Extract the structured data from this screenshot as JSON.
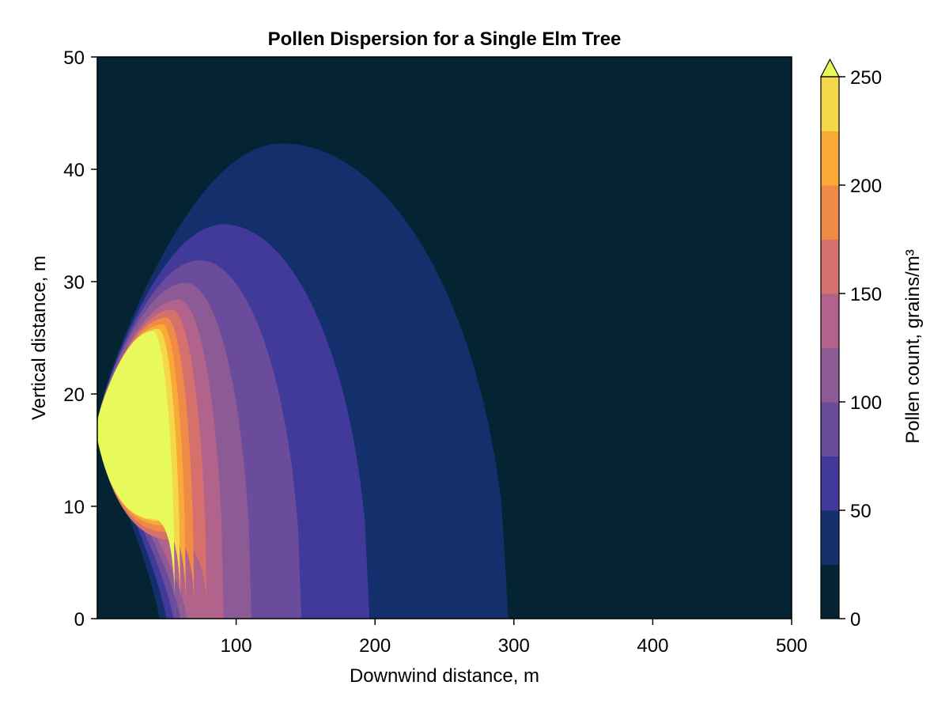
{
  "chart_data": {
    "type": "contourf",
    "title": "Pollen Dispersion for a Single Elm Tree",
    "xlabel": "Downwind distance, m",
    "ylabel": "Vertical distance, m",
    "xlim": [
      0,
      500
    ],
    "ylim": [
      0,
      50
    ],
    "xticks": [
      100,
      200,
      300,
      400,
      500
    ],
    "yticks": [
      0,
      10,
      20,
      30,
      40,
      50
    ],
    "colorbar": {
      "label": "Pollen count, grains/m³",
      "levels": [
        0,
        25,
        50,
        75,
        100,
        125,
        150,
        175,
        200,
        225,
        250
      ],
      "ticks": [
        0,
        50,
        100,
        150,
        200,
        250
      ],
      "extend": "max",
      "colors": [
        "#042333",
        "#13306d",
        "#413a9a",
        "#6b4b9b",
        "#8c5a94",
        "#b2638b",
        "#d5706d",
        "#ef8a47",
        "#f9a937",
        "#f4d84a",
        "#e8fa5b"
      ]
    },
    "source": {
      "x": 0,
      "y": 17.5
    },
    "contours": [
      {
        "level": 25,
        "reach_x": 296,
        "top_y": 42.3,
        "top_x": 133
      },
      {
        "level": 50,
        "reach_x": 196,
        "top_y": 35.1,
        "top_x": 91
      },
      {
        "level": 75,
        "reach_x": 147,
        "top_y": 31.9,
        "top_x": 74
      },
      {
        "level": 100,
        "reach_x": 111,
        "top_y": 29.9,
        "top_x": 64
      },
      {
        "level": 125,
        "reach_x": 91,
        "top_y": 28.4,
        "top_x": 59
      },
      {
        "level": 150,
        "reach_x": 79,
        "top_y": 27.5,
        "top_x": 54
      },
      {
        "level": 175,
        "reach_x": 70,
        "top_y": 26.8,
        "top_x": 50
      },
      {
        "level": 200,
        "reach_x": 64,
        "top_y": 26.2,
        "top_x": 47
      },
      {
        "level": 225,
        "reach_x": 60,
        "top_y": 25.8,
        "top_x": 44
      },
      {
        "level": 250,
        "reach_x": 56,
        "top_y": 25.6,
        "top_x": 40
      }
    ]
  }
}
